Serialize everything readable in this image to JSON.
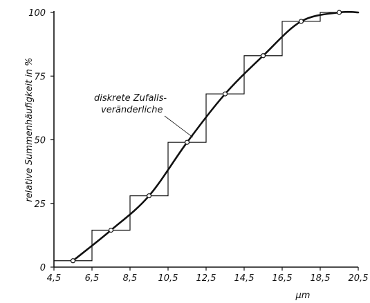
{
  "chart_data": {
    "type": "line",
    "title": "",
    "xlabel": "µm",
    "ylabel": "relative Summenhäufigkeit in %",
    "xlim": [
      4.5,
      20.5
    ],
    "ylim": [
      0,
      100
    ],
    "x_ticks": [
      "4,5",
      "6,5",
      "8,5",
      "10,5",
      "12,5",
      "14,5",
      "16,5",
      "18,5",
      "20,5"
    ],
    "y_ticks": [
      "0",
      "25",
      "50",
      "75",
      "100"
    ],
    "grid": false,
    "series": [
      {
        "name": "",
        "kind": "step",
        "points": [
          [
            4.5,
            2.5
          ],
          [
            6.5,
            2.5
          ],
          [
            6.5,
            14.5
          ],
          [
            8.5,
            14.5
          ],
          [
            8.5,
            28
          ],
          [
            10.5,
            28
          ],
          [
            10.5,
            49
          ],
          [
            12.5,
            49
          ],
          [
            12.5,
            68
          ],
          [
            14.5,
            68
          ],
          [
            14.5,
            83
          ],
          [
            16.5,
            83
          ],
          [
            16.5,
            96.5
          ],
          [
            18.5,
            96.5
          ],
          [
            18.5,
            100
          ],
          [
            20.5,
            100
          ]
        ]
      },
      {
        "name": "",
        "kind": "smooth",
        "points": [
          [
            5.5,
            2.5
          ],
          [
            7.5,
            14.5
          ],
          [
            9.5,
            28
          ],
          [
            11.5,
            49
          ],
          [
            13.5,
            68
          ],
          [
            15.5,
            83
          ],
          [
            17.5,
            96.5
          ],
          [
            19.5,
            100
          ]
        ],
        "end_point": [
          20.5,
          100
        ]
      }
    ],
    "annotation": {
      "lines": [
        "diskrete Zufalls-",
        "veränderliche"
      ],
      "pointer_targets": [
        [
          11.8,
          51
        ]
      ]
    }
  }
}
